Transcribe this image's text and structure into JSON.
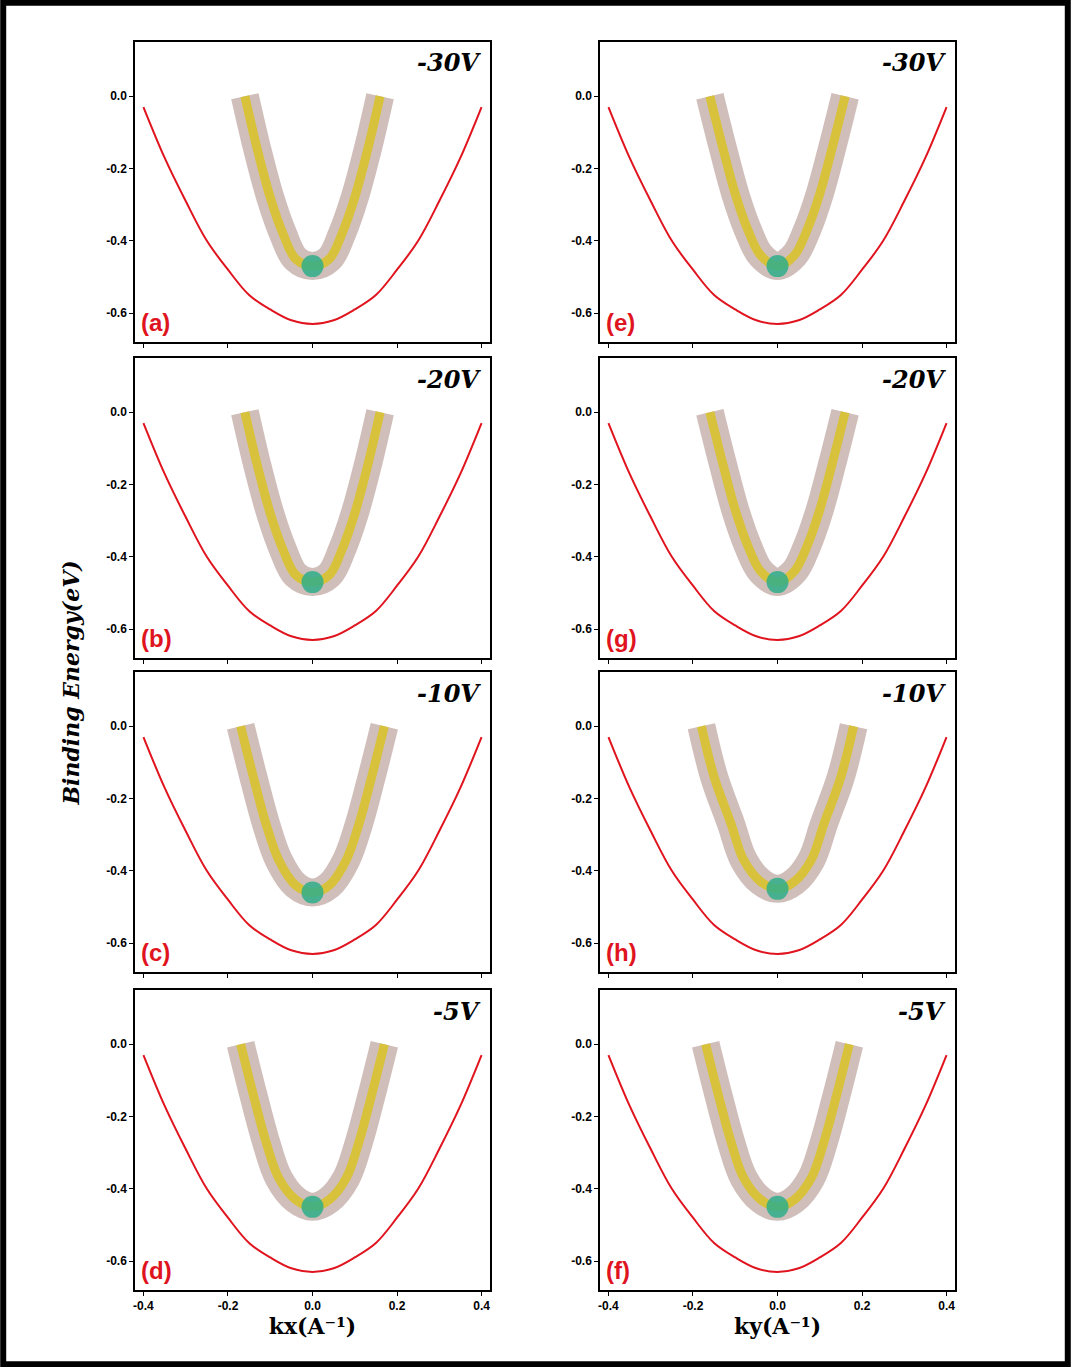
{
  "ylabel": "Binding Energy(eV)",
  "chart_data": [
    {
      "type": "line",
      "title": "-30V",
      "panel_label": "(a)",
      "tick_labels": "y",
      "xlim": [
        -0.42,
        0.42
      ],
      "xticks": [
        -0.4,
        -0.2,
        {
          "value": 0,
          "label": "0.0"
        },
        0.2,
        0.4
      ],
      "ylim": [
        -0.68,
        0.15
      ],
      "yticks": [
        {
          "value": 0,
          "label": "0.0"
        },
        -0.2,
        -0.4,
        -0.6
      ],
      "series": [
        {
          "color": "#d8c23c",
          "x": [
            -0.16,
            -0.13,
            -0.1,
            -0.07,
            -0.04,
            0,
            0.04,
            0.07,
            0.1,
            0.13,
            0.16
          ],
          "values": [
            0,
            -0.15,
            -0.28,
            -0.38,
            -0.45,
            -0.47,
            -0.45,
            -0.38,
            -0.28,
            -0.15,
            0
          ]
        },
        {
          "color": "#e0141e",
          "x": [
            -0.4,
            -0.35,
            -0.3,
            -0.25,
            -0.2,
            -0.15,
            -0.1,
            -0.05,
            0,
            0.05,
            0.1,
            0.15,
            0.2,
            0.25,
            0.3,
            0.35,
            0.4
          ],
          "values": [
            -0.03,
            -0.17,
            -0.29,
            -0.4,
            -0.48,
            -0.55,
            -0.59,
            -0.62,
            -0.63,
            -0.62,
            -0.59,
            -0.55,
            -0.48,
            -0.4,
            -0.29,
            -0.17,
            -0.03
          ]
        }
      ]
    },
    {
      "type": "line",
      "title": "-20V",
      "panel_label": "(b)",
      "tick_labels": "y",
      "xlim": [
        -0.42,
        0.42
      ],
      "xticks": [
        -0.4,
        -0.2,
        {
          "value": 0,
          "label": "0.0"
        },
        0.2,
        0.4
      ],
      "ylim": [
        -0.68,
        0.15
      ],
      "yticks": [
        {
          "value": 0,
          "label": "0.0"
        },
        -0.2,
        -0.4,
        -0.6
      ],
      "series": [
        {
          "color": "#d8c23c",
          "x": [
            -0.16,
            -0.13,
            -0.1,
            -0.07,
            -0.04,
            0,
            0.04,
            0.07,
            0.1,
            0.13,
            0.16
          ],
          "values": [
            0,
            -0.15,
            -0.28,
            -0.38,
            -0.45,
            -0.47,
            -0.45,
            -0.38,
            -0.28,
            -0.15,
            0
          ]
        },
        {
          "color": "#e0141e",
          "x": [
            -0.4,
            -0.35,
            -0.3,
            -0.25,
            -0.2,
            -0.15,
            -0.1,
            -0.05,
            0,
            0.05,
            0.1,
            0.15,
            0.2,
            0.25,
            0.3,
            0.35,
            0.4
          ],
          "values": [
            -0.03,
            -0.17,
            -0.29,
            -0.4,
            -0.48,
            -0.55,
            -0.59,
            -0.62,
            -0.63,
            -0.62,
            -0.59,
            -0.55,
            -0.48,
            -0.4,
            -0.29,
            -0.17,
            -0.03
          ]
        }
      ]
    },
    {
      "type": "line",
      "title": "-10V",
      "panel_label": "(c)",
      "tick_labels": "y",
      "xlim": [
        -0.42,
        0.42
      ],
      "xticks": [
        -0.4,
        -0.2,
        {
          "value": 0,
          "label": "0.0"
        },
        0.2,
        0.4
      ],
      "ylim": [
        -0.68,
        0.15
      ],
      "yticks": [
        {
          "value": 0,
          "label": "0.0"
        },
        -0.2,
        -0.4,
        -0.6
      ],
      "series": [
        {
          "color": "#d8c23c",
          "x": [
            -0.17,
            -0.14,
            -0.11,
            -0.08,
            -0.04,
            0,
            0.04,
            0.08,
            0.11,
            0.14,
            0.17
          ],
          "values": [
            0,
            -0.14,
            -0.27,
            -0.37,
            -0.44,
            -0.46,
            -0.44,
            -0.37,
            -0.27,
            -0.14,
            0
          ]
        },
        {
          "color": "#e0141e",
          "x": [
            -0.4,
            -0.35,
            -0.3,
            -0.25,
            -0.2,
            -0.15,
            -0.1,
            -0.05,
            0,
            0.05,
            0.1,
            0.15,
            0.2,
            0.25,
            0.3,
            0.35,
            0.4
          ],
          "values": [
            -0.03,
            -0.17,
            -0.29,
            -0.4,
            -0.48,
            -0.55,
            -0.59,
            -0.62,
            -0.63,
            -0.62,
            -0.59,
            -0.55,
            -0.48,
            -0.4,
            -0.29,
            -0.17,
            -0.03
          ]
        }
      ]
    },
    {
      "type": "line",
      "title": "-5V",
      "panel_label": "(d)",
      "xlabel": "kx(A⁻¹)",
      "xlim": [
        -0.42,
        0.42
      ],
      "xticks": [
        -0.4,
        -0.2,
        {
          "value": 0,
          "label": "0.0"
        },
        0.2,
        0.4
      ],
      "ylim": [
        -0.68,
        0.15
      ],
      "yticks": [
        {
          "value": 0,
          "label": "0.0"
        },
        -0.2,
        -0.4,
        -0.6
      ],
      "series": [
        {
          "color": "#d8c23c",
          "x": [
            -0.17,
            -0.14,
            -0.11,
            -0.08,
            -0.04,
            0,
            0.04,
            0.08,
            0.11,
            0.14,
            0.17
          ],
          "values": [
            0,
            -0.14,
            -0.27,
            -0.37,
            -0.43,
            -0.45,
            -0.43,
            -0.37,
            -0.27,
            -0.14,
            0
          ]
        },
        {
          "color": "#e0141e",
          "x": [
            -0.4,
            -0.35,
            -0.3,
            -0.25,
            -0.2,
            -0.15,
            -0.1,
            -0.05,
            0,
            0.05,
            0.1,
            0.15,
            0.2,
            0.25,
            0.3,
            0.35,
            0.4
          ],
          "values": [
            -0.03,
            -0.17,
            -0.29,
            -0.4,
            -0.48,
            -0.55,
            -0.59,
            -0.62,
            -0.63,
            -0.62,
            -0.59,
            -0.55,
            -0.48,
            -0.4,
            -0.29,
            -0.17,
            -0.03
          ]
        }
      ]
    },
    {
      "type": "line",
      "title": "-30V",
      "panel_label": "(e)",
      "tick_labels": "y",
      "xlim": [
        -0.42,
        0.42
      ],
      "xticks": [
        -0.4,
        -0.2,
        {
          "value": 0,
          "label": "0.0"
        },
        0.2,
        0.4
      ],
      "ylim": [
        -0.68,
        0.15
      ],
      "yticks": [
        {
          "value": 0,
          "label": "0.0"
        },
        -0.2,
        -0.4,
        -0.6
      ],
      "series": [
        {
          "color": "#d8c23c",
          "x": [
            -0.16,
            -0.13,
            -0.1,
            -0.07,
            -0.04,
            0,
            0.04,
            0.07,
            0.1,
            0.13,
            0.16
          ],
          "values": [
            0,
            -0.14,
            -0.27,
            -0.37,
            -0.44,
            -0.47,
            -0.44,
            -0.37,
            -0.27,
            -0.14,
            0
          ]
        },
        {
          "color": "#e0141e",
          "x": [
            -0.4,
            -0.35,
            -0.3,
            -0.25,
            -0.2,
            -0.15,
            -0.1,
            -0.05,
            0,
            0.05,
            0.1,
            0.15,
            0.2,
            0.25,
            0.3,
            0.35,
            0.4
          ],
          "values": [
            -0.03,
            -0.17,
            -0.29,
            -0.4,
            -0.48,
            -0.55,
            -0.59,
            -0.62,
            -0.63,
            -0.62,
            -0.59,
            -0.55,
            -0.48,
            -0.4,
            -0.29,
            -0.17,
            -0.03
          ]
        }
      ]
    },
    {
      "type": "line",
      "title": "-20V",
      "panel_label": "(g)",
      "tick_labels": "y",
      "xlim": [
        -0.42,
        0.42
      ],
      "xticks": [
        -0.4,
        -0.2,
        {
          "value": 0,
          "label": "0.0"
        },
        0.2,
        0.4
      ],
      "ylim": [
        -0.68,
        0.15
      ],
      "yticks": [
        {
          "value": 0,
          "label": "0.0"
        },
        -0.2,
        -0.4,
        -0.6
      ],
      "series": [
        {
          "color": "#d8c23c",
          "x": [
            -0.16,
            -0.13,
            -0.1,
            -0.07,
            -0.04,
            0,
            0.04,
            0.07,
            0.1,
            0.13,
            0.16
          ],
          "values": [
            0,
            -0.14,
            -0.27,
            -0.37,
            -0.44,
            -0.47,
            -0.44,
            -0.37,
            -0.27,
            -0.14,
            0
          ]
        },
        {
          "color": "#e0141e",
          "x": [
            -0.4,
            -0.35,
            -0.3,
            -0.25,
            -0.2,
            -0.15,
            -0.1,
            -0.05,
            0,
            0.05,
            0.1,
            0.15,
            0.2,
            0.25,
            0.3,
            0.35,
            0.4
          ],
          "values": [
            -0.03,
            -0.17,
            -0.29,
            -0.4,
            -0.48,
            -0.55,
            -0.59,
            -0.62,
            -0.63,
            -0.62,
            -0.59,
            -0.55,
            -0.48,
            -0.4,
            -0.29,
            -0.17,
            -0.03
          ]
        }
      ]
    },
    {
      "type": "line",
      "title": "-10V",
      "panel_label": "(h)",
      "tick_labels": "y",
      "xlim": [
        -0.42,
        0.42
      ],
      "xticks": [
        -0.4,
        -0.2,
        {
          "value": 0,
          "label": "0.0"
        },
        0.2,
        0.4
      ],
      "ylim": [
        -0.68,
        0.15
      ],
      "yticks": [
        {
          "value": 0,
          "label": "0.0"
        },
        -0.2,
        -0.4,
        -0.6
      ],
      "series": [
        {
          "color": "#d8c23c",
          "x": [
            -0.18,
            -0.15,
            -0.11,
            -0.08,
            -0.04,
            0,
            0.04,
            0.08,
            0.11,
            0.15,
            0.18
          ],
          "values": [
            0,
            -0.14,
            -0.27,
            -0.37,
            -0.43,
            -0.45,
            -0.43,
            -0.37,
            -0.27,
            -0.14,
            0
          ]
        },
        {
          "color": "#e0141e",
          "x": [
            -0.4,
            -0.35,
            -0.3,
            -0.25,
            -0.2,
            -0.15,
            -0.1,
            -0.05,
            0,
            0.05,
            0.1,
            0.15,
            0.2,
            0.25,
            0.3,
            0.35,
            0.4
          ],
          "values": [
            -0.03,
            -0.17,
            -0.29,
            -0.4,
            -0.48,
            -0.55,
            -0.59,
            -0.62,
            -0.63,
            -0.62,
            -0.59,
            -0.55,
            -0.48,
            -0.4,
            -0.29,
            -0.17,
            -0.03
          ]
        }
      ]
    },
    {
      "type": "line",
      "title": "-5V",
      "panel_label": "(f)",
      "xlabel": "ky(A⁻¹)",
      "xlim": [
        -0.42,
        0.42
      ],
      "xticks": [
        -0.4,
        -0.2,
        {
          "value": 0,
          "label": "0.0"
        },
        0.2,
        0.4
      ],
      "ylim": [
        -0.68,
        0.15
      ],
      "yticks": [
        {
          "value": 0,
          "label": "0.0"
        },
        -0.2,
        -0.4,
        -0.6
      ],
      "series": [
        {
          "color": "#d8c23c",
          "x": [
            -0.17,
            -0.14,
            -0.11,
            -0.08,
            -0.04,
            0,
            0.04,
            0.08,
            0.11,
            0.14,
            0.17
          ],
          "values": [
            0,
            -0.14,
            -0.27,
            -0.37,
            -0.43,
            -0.45,
            -0.43,
            -0.37,
            -0.27,
            -0.14,
            0
          ]
        },
        {
          "color": "#e0141e",
          "x": [
            -0.4,
            -0.35,
            -0.3,
            -0.25,
            -0.2,
            -0.15,
            -0.1,
            -0.05,
            0,
            0.05,
            0.1,
            0.15,
            0.2,
            0.25,
            0.3,
            0.35,
            0.4
          ],
          "values": [
            -0.03,
            -0.17,
            -0.29,
            -0.4,
            -0.48,
            -0.55,
            -0.59,
            -0.62,
            -0.63,
            -0.62,
            -0.59,
            -0.55,
            -0.48,
            -0.4,
            -0.29,
            -0.17,
            -0.03
          ]
        }
      ]
    }
  ]
}
